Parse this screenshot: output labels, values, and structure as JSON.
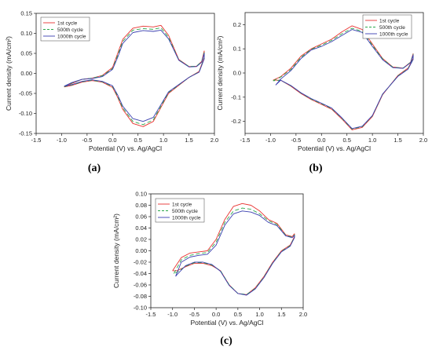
{
  "chart_data": [
    {
      "type": "line",
      "panel": "(a)",
      "xlabel": "Potential (V) vs. Ag/AgCl",
      "ylabel": "Current density (mA/cm²)",
      "xlim": [
        -1.5,
        2.0
      ],
      "ylim": [
        -0.15,
        0.15
      ],
      "xticks": [
        "-1.5",
        "-1.0",
        "-0.5",
        "0.0",
        "0.5",
        "1.0",
        "1.5",
        "2.0"
      ],
      "yticks": [
        "-0.15",
        "-0.10",
        "-0.05",
        "0.00",
        "0.05",
        "0.10",
        "0.15"
      ],
      "legend": "top-left",
      "series": [
        {
          "name": "1st cycle",
          "color": "#e8312f",
          "dash": "solid",
          "x": [
            -0.95,
            -0.8,
            -0.6,
            -0.4,
            -0.2,
            0.0,
            0.1,
            0.2,
            0.4,
            0.6,
            0.8,
            0.95,
            1.1,
            1.3,
            1.5,
            1.65,
            1.75,
            1.8,
            1.8,
            1.7,
            1.5,
            1.3,
            1.1,
            0.95,
            0.8,
            0.6,
            0.4,
            0.2,
            0.1,
            0.0,
            -0.2,
            -0.4,
            -0.6,
            -0.8,
            -0.95
          ],
          "y": [
            -0.034,
            -0.025,
            -0.015,
            -0.012,
            -0.005,
            0.015,
            0.05,
            0.085,
            0.113,
            0.118,
            0.116,
            0.12,
            0.095,
            0.035,
            0.017,
            0.018,
            0.03,
            0.056,
            0.04,
            0.005,
            -0.01,
            -0.03,
            -0.05,
            -0.085,
            -0.12,
            -0.133,
            -0.125,
            -0.09,
            -0.06,
            -0.035,
            -0.022,
            -0.018,
            -0.022,
            -0.03,
            -0.034
          ]
        },
        {
          "name": "500th cycle",
          "color": "#2aa84a",
          "dash": "5,3",
          "x": [
            -0.95,
            -0.8,
            -0.6,
            -0.4,
            -0.2,
            0.0,
            0.1,
            0.2,
            0.4,
            0.6,
            0.8,
            0.95,
            1.1,
            1.3,
            1.5,
            1.65,
            1.75,
            1.8,
            1.8,
            1.7,
            1.5,
            1.3,
            1.1,
            0.95,
            0.8,
            0.6,
            0.4,
            0.2,
            0.1,
            0.0,
            -0.2,
            -0.4,
            -0.6,
            -0.8,
            -0.95
          ],
          "y": [
            -0.033,
            -0.024,
            -0.015,
            -0.012,
            -0.006,
            0.012,
            0.045,
            0.08,
            0.108,
            0.112,
            0.11,
            0.114,
            0.09,
            0.034,
            0.017,
            0.018,
            0.03,
            0.052,
            0.038,
            0.004,
            -0.01,
            -0.029,
            -0.048,
            -0.082,
            -0.116,
            -0.128,
            -0.12,
            -0.086,
            -0.057,
            -0.033,
            -0.021,
            -0.017,
            -0.021,
            -0.029,
            -0.033
          ]
        },
        {
          "name": "1000th cycle",
          "color": "#3a3fb0",
          "dash": "solid",
          "x": [
            -0.95,
            -0.8,
            -0.6,
            -0.4,
            -0.2,
            0.0,
            0.1,
            0.2,
            0.4,
            0.6,
            0.8,
            0.95,
            1.1,
            1.3,
            1.5,
            1.65,
            1.75,
            1.8,
            1.8,
            1.7,
            1.5,
            1.3,
            1.1,
            0.95,
            0.8,
            0.6,
            0.4,
            0.2,
            0.1,
            0.0,
            -0.2,
            -0.4,
            -0.6,
            -0.8,
            -0.95
          ],
          "y": [
            -0.032,
            -0.023,
            -0.015,
            -0.013,
            -0.008,
            0.01,
            0.04,
            0.075,
            0.102,
            0.107,
            0.105,
            0.108,
            0.086,
            0.033,
            0.016,
            0.017,
            0.028,
            0.05,
            0.036,
            0.003,
            -0.01,
            -0.028,
            -0.046,
            -0.078,
            -0.11,
            -0.12,
            -0.113,
            -0.082,
            -0.054,
            -0.031,
            -0.02,
            -0.016,
            -0.02,
            -0.028,
            -0.032
          ]
        }
      ]
    },
    {
      "type": "line",
      "panel": "(b)",
      "xlabel": "Potential (V) vs. Ag/AgCl",
      "ylabel": "Current density (mA/cm²)",
      "xlim": [
        -1.5,
        2.0
      ],
      "ylim": [
        -0.25,
        0.25
      ],
      "xticks": [
        "-1.5",
        "-1.0",
        "-0.5",
        "0.0",
        "0.5",
        "1.0",
        "1.5",
        "2.0"
      ],
      "yticks": [
        "-0.2",
        "-0.1",
        "0.0",
        "0.1",
        "0.2"
      ],
      "legend": "top-right",
      "series": [
        {
          "name": "1st cycle",
          "color": "#e8312f",
          "dash": "solid",
          "x": [
            -0.95,
            -0.8,
            -0.6,
            -0.4,
            -0.2,
            0.0,
            0.2,
            0.4,
            0.6,
            0.8,
            1.0,
            1.2,
            1.4,
            1.6,
            1.75,
            1.8,
            1.8,
            1.7,
            1.5,
            1.2,
            1.0,
            0.8,
            0.6,
            0.4,
            0.2,
            0.0,
            -0.2,
            -0.4,
            -0.6,
            -0.8,
            -0.95
          ],
          "y": [
            -0.03,
            -0.015,
            0.02,
            0.07,
            0.1,
            0.12,
            0.14,
            0.17,
            0.195,
            0.18,
            0.12,
            0.06,
            0.025,
            0.02,
            0.045,
            0.08,
            0.06,
            0.02,
            -0.01,
            -0.09,
            -0.18,
            -0.225,
            -0.235,
            -0.19,
            -0.15,
            -0.13,
            -0.11,
            -0.085,
            -0.055,
            -0.03,
            -0.03
          ]
        },
        {
          "name": "500th cycle",
          "color": "#2aa84a",
          "dash": "5,3",
          "x": [
            -0.95,
            -0.8,
            -0.6,
            -0.4,
            -0.2,
            0.0,
            0.2,
            0.4,
            0.6,
            0.8,
            1.0,
            1.2,
            1.4,
            1.6,
            1.75,
            1.8,
            1.8,
            1.7,
            1.5,
            1.2,
            1.0,
            0.8,
            0.6,
            0.4,
            0.2,
            0.0,
            -0.2,
            -0.4,
            -0.6,
            -0.8,
            -0.95
          ],
          "y": [
            -0.032,
            -0.017,
            0.015,
            0.065,
            0.098,
            0.115,
            0.135,
            0.162,
            0.185,
            0.172,
            0.115,
            0.058,
            0.024,
            0.02,
            0.044,
            0.078,
            0.058,
            0.018,
            -0.012,
            -0.088,
            -0.177,
            -0.222,
            -0.232,
            -0.187,
            -0.147,
            -0.127,
            -0.108,
            -0.083,
            -0.053,
            -0.03,
            -0.032
          ]
        },
        {
          "name": "1000th cycle",
          "color": "#3a3fb0",
          "dash": "solid",
          "x": [
            -0.9,
            -0.8,
            -0.6,
            -0.4,
            -0.2,
            0.0,
            0.2,
            0.4,
            0.6,
            0.8,
            1.0,
            1.2,
            1.4,
            1.6,
            1.75,
            1.8,
            1.8,
            1.7,
            1.5,
            1.2,
            1.0,
            0.8,
            0.6,
            0.4,
            0.2,
            0.0,
            -0.2,
            -0.4,
            -0.6,
            -0.8,
            -0.9
          ],
          "y": [
            -0.05,
            -0.025,
            0.01,
            0.06,
            0.095,
            0.11,
            0.13,
            0.155,
            0.18,
            0.168,
            0.11,
            0.055,
            0.022,
            0.019,
            0.043,
            0.075,
            0.056,
            0.016,
            -0.014,
            -0.087,
            -0.176,
            -0.22,
            -0.23,
            -0.185,
            -0.145,
            -0.125,
            -0.106,
            -0.082,
            -0.052,
            -0.03,
            -0.05
          ]
        }
      ]
    },
    {
      "type": "line",
      "panel": "(c)",
      "xlabel": "Potential (V) vs. Ag/AgCl",
      "ylabel": "Current density (mA/cm²)",
      "xlim": [
        -1.5,
        2.0
      ],
      "ylim": [
        -0.1,
        0.1
      ],
      "xticks": [
        "-1.5",
        "-1.0",
        "-0.5",
        "0.0",
        "0.5",
        "1.0",
        "1.5",
        "2.0"
      ],
      "yticks": [
        "-0.10",
        "-0.08",
        "-0.06",
        "-0.04",
        "-0.02",
        "0.00",
        "0.02",
        "0.04",
        "0.06",
        "0.08",
        "0.10"
      ],
      "legend": "top-left",
      "series": [
        {
          "name": "1st cycle",
          "color": "#e8312f",
          "dash": "solid",
          "x": [
            -1.0,
            -0.8,
            -0.6,
            -0.4,
            -0.2,
            0.0,
            0.2,
            0.4,
            0.6,
            0.8,
            1.0,
            1.2,
            1.4,
            1.6,
            1.75,
            1.8,
            1.8,
            1.7,
            1.5,
            1.3,
            1.1,
            0.9,
            0.7,
            0.5,
            0.3,
            0.1,
            -0.1,
            -0.3,
            -0.5,
            -0.7,
            -0.9,
            -1.0
          ],
          "y": [
            -0.035,
            -0.012,
            -0.004,
            -0.002,
            0.0,
            0.02,
            0.055,
            0.078,
            0.083,
            0.08,
            0.07,
            0.055,
            0.048,
            0.028,
            0.025,
            0.03,
            0.025,
            0.01,
            0.0,
            -0.02,
            -0.045,
            -0.065,
            -0.077,
            -0.075,
            -0.06,
            -0.035,
            -0.026,
            -0.022,
            -0.022,
            -0.028,
            -0.035,
            -0.035
          ]
        },
        {
          "name": "500th cycle",
          "color": "#2aa84a",
          "dash": "5,3",
          "x": [
            -0.97,
            -0.8,
            -0.6,
            -0.4,
            -0.2,
            0.0,
            0.2,
            0.4,
            0.6,
            0.8,
            1.0,
            1.2,
            1.4,
            1.6,
            1.75,
            1.8,
            1.8,
            1.7,
            1.5,
            1.3,
            1.1,
            0.9,
            0.7,
            0.5,
            0.3,
            0.1,
            -0.1,
            -0.3,
            -0.5,
            -0.7,
            -0.9,
            -0.97
          ],
          "y": [
            -0.04,
            -0.016,
            -0.008,
            -0.005,
            -0.003,
            0.015,
            0.05,
            0.07,
            0.075,
            0.073,
            0.065,
            0.053,
            0.046,
            0.027,
            0.024,
            0.028,
            0.024,
            0.009,
            -0.001,
            -0.021,
            -0.046,
            -0.066,
            -0.077,
            -0.075,
            -0.06,
            -0.035,
            -0.025,
            -0.021,
            -0.021,
            -0.027,
            -0.038,
            -0.04
          ]
        },
        {
          "name": "1000th cycle",
          "color": "#3a3fb0",
          "dash": "solid",
          "x": [
            -0.93,
            -0.8,
            -0.6,
            -0.4,
            -0.2,
            0.0,
            0.2,
            0.4,
            0.6,
            0.8,
            1.0,
            1.2,
            1.4,
            1.6,
            1.75,
            1.8,
            1.8,
            1.7,
            1.5,
            1.3,
            1.1,
            0.9,
            0.7,
            0.5,
            0.3,
            0.1,
            -0.1,
            -0.3,
            -0.5,
            -0.7,
            -0.9,
            -0.93
          ],
          "y": [
            -0.045,
            -0.02,
            -0.011,
            -0.008,
            -0.006,
            0.01,
            0.045,
            0.065,
            0.07,
            0.068,
            0.062,
            0.05,
            0.044,
            0.026,
            0.023,
            0.027,
            0.023,
            0.008,
            -0.002,
            -0.022,
            -0.047,
            -0.067,
            -0.078,
            -0.075,
            -0.061,
            -0.036,
            -0.024,
            -0.02,
            -0.02,
            -0.026,
            -0.042,
            -0.045
          ]
        }
      ]
    }
  ]
}
